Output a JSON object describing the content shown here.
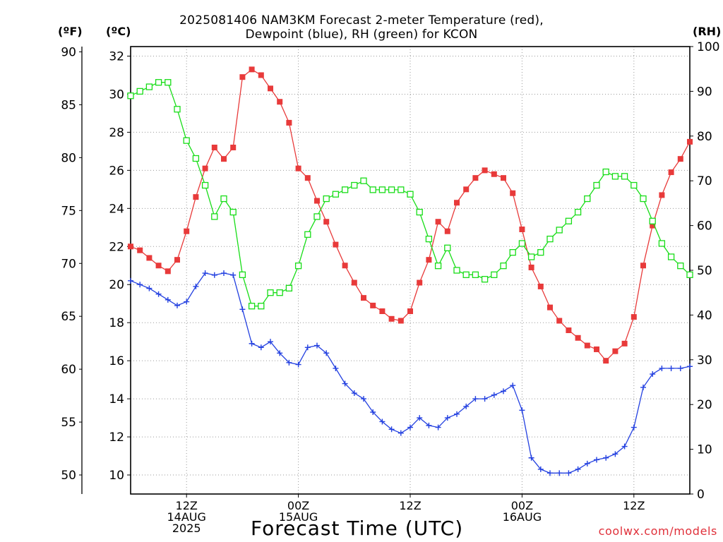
{
  "chart_data": {
    "type": "line",
    "title_lines": [
      "2025081406 NAM3KM Forecast 2-meter Temperature (red),",
      "Dewpoint (blue), RH (green) for KCON"
    ],
    "xlabel": "Forecast Time (UTC)",
    "axis_units": {
      "fahrenheit": "(ºF)",
      "celsius": "(ºC)",
      "rh": "(RH)"
    },
    "credit": "coolwx.com/models",
    "x_unit": "hours after 2025-08-14 06Z",
    "xlim": [
      0,
      60
    ],
    "x_ticks": [
      {
        "x": 6,
        "lines": [
          "12Z",
          "14AUG",
          "2025"
        ]
      },
      {
        "x": 18,
        "lines": [
          "00Z",
          "15AUG"
        ]
      },
      {
        "x": 30,
        "lines": [
          "12Z"
        ]
      },
      {
        "x": 42,
        "lines": [
          "00Z",
          "16AUG"
        ]
      },
      {
        "x": 54,
        "lines": [
          "12Z"
        ]
      }
    ],
    "celsius_axis": {
      "ylim": [
        9,
        32.5
      ],
      "ticks": [
        10,
        12,
        14,
        16,
        18,
        20,
        22,
        24,
        26,
        28,
        30,
        32
      ]
    },
    "fahrenheit_axis": {
      "ylim": [
        48.2,
        90.5
      ],
      "ticks": [
        50,
        55,
        60,
        65,
        70,
        75,
        80,
        85,
        90
      ]
    },
    "rh_axis": {
      "ylim": [
        0,
        100
      ],
      "ticks": [
        0,
        10,
        20,
        30,
        40,
        50,
        60,
        70,
        80,
        90,
        100
      ]
    },
    "grid": true,
    "series": [
      {
        "name": "Temperature",
        "color": "#e83a3a",
        "axis": "celsius",
        "marker": "filled-square",
        "x": [
          0,
          1,
          2,
          3,
          4,
          5,
          6,
          7,
          8,
          9,
          10,
          11,
          12,
          13,
          14,
          15,
          16,
          17,
          18,
          19,
          20,
          21,
          22,
          23,
          24,
          25,
          26,
          27,
          28,
          29,
          30,
          31,
          32,
          33,
          34,
          35,
          36,
          37,
          38,
          39,
          40,
          41,
          42,
          43,
          44,
          45,
          46,
          47,
          48,
          49,
          50,
          51,
          52,
          53,
          54,
          55,
          56,
          57,
          58,
          59,
          60
        ],
        "values": [
          22.0,
          21.8,
          21.4,
          21.0,
          20.7,
          21.3,
          22.8,
          24.6,
          26.1,
          27.2,
          26.6,
          27.2,
          30.9,
          31.3,
          31.0,
          30.3,
          29.6,
          28.5,
          26.1,
          25.6,
          24.4,
          23.3,
          22.1,
          21.0,
          20.1,
          19.3,
          18.9,
          18.6,
          18.2,
          18.1,
          18.6,
          20.1,
          21.3,
          23.3,
          22.8,
          24.3,
          25.0,
          25.6,
          26.0,
          25.8,
          25.6,
          24.8,
          22.9,
          20.9,
          19.9,
          18.8,
          18.1,
          17.6,
          17.2,
          16.8,
          16.6,
          16.0,
          16.5,
          16.9,
          18.3,
          21.0,
          23.1,
          24.7,
          25.9,
          26.6,
          27.5
        ]
      },
      {
        "name": "Dewpoint",
        "color": "#2340e0",
        "axis": "celsius",
        "marker": "plus",
        "x": [
          0,
          1,
          2,
          3,
          4,
          5,
          6,
          7,
          8,
          9,
          10,
          11,
          12,
          13,
          14,
          15,
          16,
          17,
          18,
          19,
          20,
          21,
          22,
          23,
          24,
          25,
          26,
          27,
          28,
          29,
          30,
          31,
          32,
          33,
          34,
          35,
          36,
          37,
          38,
          39,
          40,
          41,
          42,
          43,
          44,
          45,
          46,
          47,
          48,
          49,
          50,
          51,
          52,
          53,
          54,
          55,
          56,
          57,
          58,
          59,
          60
        ],
        "values": [
          20.2,
          20.0,
          19.8,
          19.5,
          19.2,
          18.9,
          19.1,
          19.9,
          20.6,
          20.5,
          20.6,
          20.5,
          18.7,
          16.9,
          16.7,
          17.0,
          16.4,
          15.9,
          15.8,
          16.7,
          16.8,
          16.4,
          15.6,
          14.8,
          14.3,
          14.0,
          13.3,
          12.8,
          12.4,
          12.2,
          12.5,
          13.0,
          12.6,
          12.5,
          13.0,
          13.2,
          13.6,
          14.0,
          14.0,
          14.2,
          14.4,
          14.7,
          13.4,
          10.9,
          10.3,
          10.1,
          10.1,
          10.1,
          10.3,
          10.6,
          10.8,
          10.9,
          11.1,
          11.5,
          12.5,
          14.6,
          15.3,
          15.6,
          15.6,
          15.6,
          15.7
        ]
      },
      {
        "name": "RH",
        "color": "#18dd18",
        "axis": "rh",
        "marker": "open-square",
        "x": [
          0,
          1,
          2,
          3,
          4,
          5,
          6,
          7,
          8,
          9,
          10,
          11,
          12,
          13,
          14,
          15,
          16,
          17,
          18,
          19,
          20,
          21,
          22,
          23,
          24,
          25,
          26,
          27,
          28,
          29,
          30,
          31,
          32,
          33,
          34,
          35,
          36,
          37,
          38,
          39,
          40,
          41,
          42,
          43,
          44,
          45,
          46,
          47,
          48,
          49,
          50,
          51,
          52,
          53,
          54,
          55,
          56,
          57,
          58,
          59,
          60
        ],
        "values": [
          89,
          90,
          91,
          92,
          92,
          86,
          79,
          75,
          69,
          62,
          66,
          63,
          49,
          42,
          42,
          45,
          45,
          46,
          51,
          58,
          62,
          66,
          67,
          68,
          69,
          70,
          68,
          68,
          68,
          68,
          67,
          63,
          57,
          51,
          55,
          50,
          49,
          49,
          48,
          49,
          51,
          54,
          56,
          53,
          54,
          57,
          59,
          61,
          63,
          66,
          69,
          72,
          71,
          71,
          69,
          66,
          61,
          56,
          53,
          51,
          49
        ]
      }
    ]
  }
}
